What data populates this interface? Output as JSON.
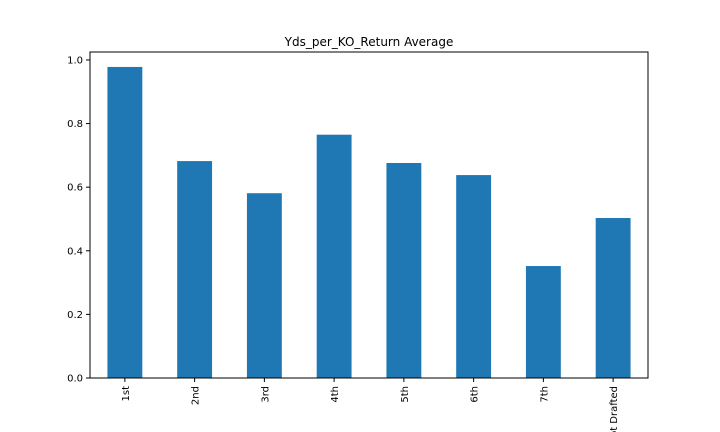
{
  "chart_data": {
    "type": "bar",
    "title": "Yds_per_KO_Return Average",
    "xlabel": "",
    "ylabel": "",
    "categories": [
      "1st",
      "2nd",
      "3rd",
      "4th",
      "5th",
      "6th",
      "7th",
      "Not Drafted"
    ],
    "values": [
      0.978,
      0.682,
      0.581,
      0.765,
      0.676,
      0.638,
      0.352,
      0.503
    ],
    "ylim": [
      0,
      1.025
    ],
    "yticks": [
      "0.0",
      "0.2",
      "0.4",
      "0.6",
      "0.8",
      "1.0"
    ],
    "bar_color": "#1f77b4",
    "grid": false,
    "legend": "none"
  }
}
